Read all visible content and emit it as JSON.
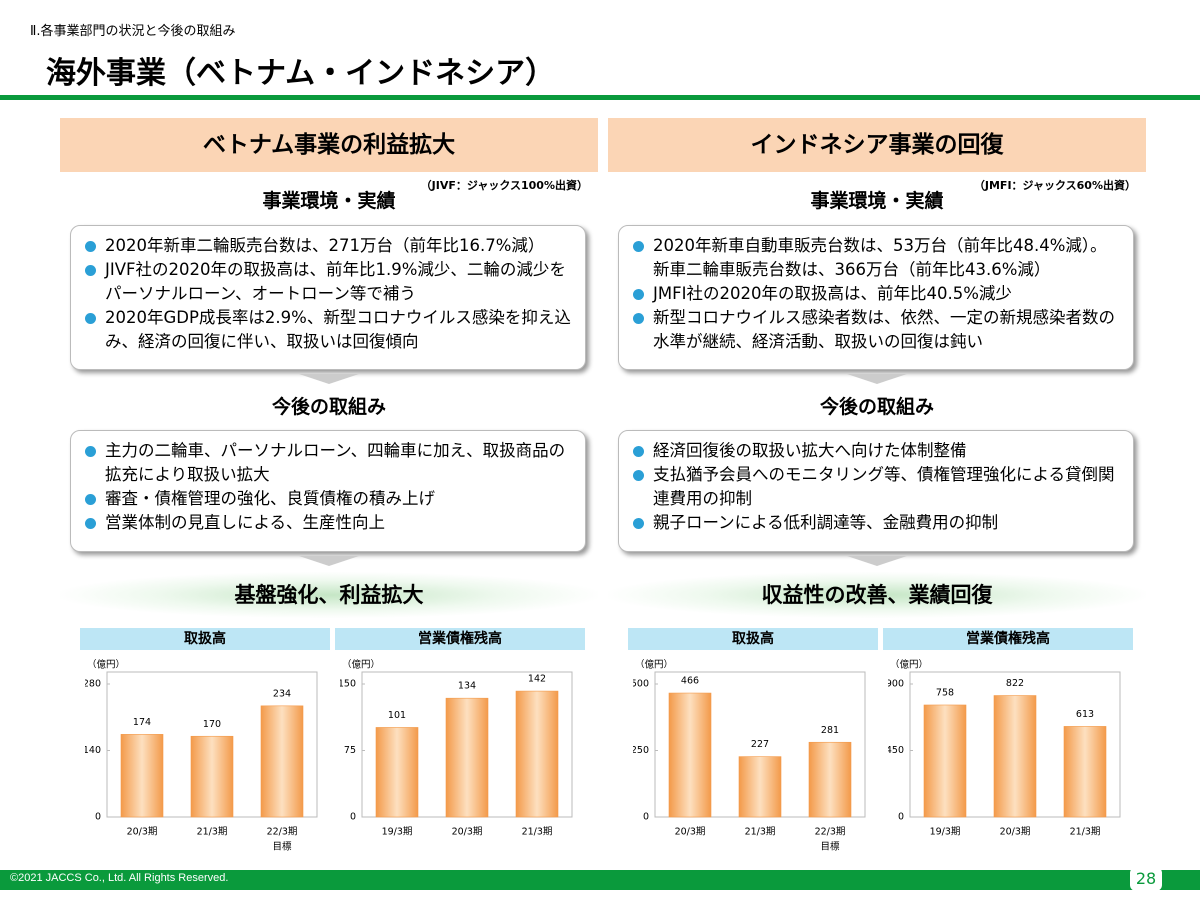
{
  "header": {
    "section": "Ⅱ.各事業部門の状況と今後の取組み",
    "title": "海外事業（ベトナム・インドネシア）"
  },
  "panels": [
    {
      "heading": "ベトナム事業の利益拡大",
      "note": "（JIVF：ジャックス100%出資）",
      "env_title": "事業環境・実績",
      "env_items": [
        "2020年新車二輪販売台数は、271万台（前年比16.7%減）",
        "JIVF社の2020年の取扱高は、前年比1.9%減少、二輪の減少をパーソナルローン、オートローン等で補う",
        "2020年GDP成長率は2.9%、新型コロナウイルス感染を抑え込み、経済の回復に伴い、取扱いは回復傾向"
      ],
      "plan_title": "今後の取組み",
      "plan_items": [
        "主力の二輪車、パーソナルローン、四輪車に加え、取扱商品の拡充により取扱い拡大",
        "審査・債権管理の強化、良質債権の積み上げ",
        "営業体制の見直しによる、生産性向上"
      ],
      "goal": "基盤強化、利益拡大",
      "charts": [
        {
          "type": "bar",
          "title": "取扱高",
          "unit": "（億円）",
          "categories": [
            "20/3期",
            "21/3期",
            "22/3期"
          ],
          "category_notes": [
            null,
            null,
            "目標"
          ],
          "values": [
            174,
            170,
            234
          ],
          "color": "#f39a4a",
          "ylim": [
            0,
            280
          ],
          "yticks": [
            0,
            140,
            280
          ]
        },
        {
          "type": "bar",
          "title": "営業債権残高",
          "unit": "（億円）",
          "categories": [
            "19/3期",
            "20/3期",
            "21/3期"
          ],
          "values": [
            101,
            134,
            142
          ],
          "color": "#f39a4a",
          "ylim": [
            0,
            150
          ],
          "yticks": [
            0,
            75,
            150
          ]
        }
      ]
    },
    {
      "heading": "インドネシア事業の回復",
      "note": "（JMFI：ジャックス60%出資）",
      "env_title": "事業環境・実績",
      "env_items": [
        "2020年新車自動車販売台数は、53万台（前年比48.4%減）。新車二輪車販売台数は、366万台（前年比43.6%減）",
        "JMFI社の2020年の取扱高は、前年比40.5%減少",
        "新型コロナウイルス感染者数は、依然、一定の新規感染者数の水準が継続、経済活動、取扱いの回復は鈍い"
      ],
      "plan_title": "今後の取組み",
      "plan_items": [
        "経済回復後の取扱い拡大へ向けた体制整備",
        "支払猶予会員へのモニタリング等、債権管理強化による貸倒関連費用の抑制",
        "親子ローンによる低利調達等、金融費用の抑制"
      ],
      "goal": "収益性の改善、業績回復",
      "charts": [
        {
          "type": "bar",
          "title": "取扱高",
          "unit": "（億円）",
          "categories": [
            "20/3期",
            "21/3期",
            "22/3期"
          ],
          "category_notes": [
            null,
            null,
            "目標"
          ],
          "values": [
            466,
            227,
            281
          ],
          "color": "#f39a4a",
          "ylim": [
            0,
            500
          ],
          "yticks": [
            0,
            250,
            500
          ]
        },
        {
          "type": "bar",
          "title": "営業債権残高",
          "unit": "（億円）",
          "categories": [
            "19/3期",
            "20/3期",
            "21/3期"
          ],
          "values": [
            758,
            822,
            613
          ],
          "color": "#f39a4a",
          "ylim": [
            0,
            900
          ],
          "yticks": [
            0,
            450,
            900
          ]
        }
      ]
    }
  ],
  "footer": {
    "copyright": "©2021 JACCS Co., Ltd. All Rights Reserved.",
    "page": "28"
  }
}
